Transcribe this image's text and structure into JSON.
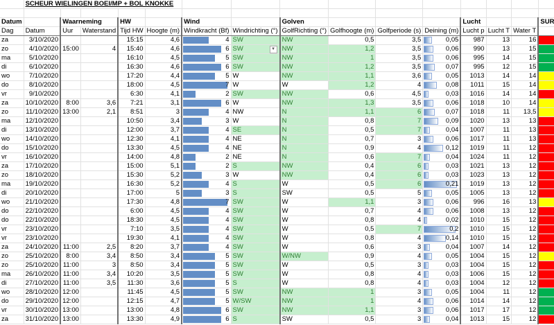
{
  "title": "SCHEUR WIELINGEN BOEI/MP + BOL KNOKKE",
  "groups": {
    "datum": "Datum",
    "waarneming": "Waarneming",
    "hw": "HW",
    "wind": "Wind",
    "golven": "Golven",
    "lucht": "Lucht",
    "surf": "SURF?"
  },
  "columns": [
    "Dag",
    "Datum",
    "Uur",
    "Waterstand",
    "Tijd HW",
    "Hoogte (m)",
    "Windkracht (Bf)",
    "Windrichting (°)",
    "GolfRichting (°)",
    "Golfhoogte (m)",
    "Golfperiode (s)",
    "Deining (m)",
    "Lucht p",
    "Lucht T",
    "Water T"
  ],
  "colors": {
    "highlight_bg": "#c6efce",
    "highlight_text": "#2e7d32",
    "bar": "#638ec6",
    "red": "#ff0000",
    "yellow": "#ffff00",
    "green": "#00b050"
  },
  "rows": [
    [
      "za",
      "3/10/2020",
      "",
      "",
      "15:15",
      "4,6",
      "4",
      "SW",
      "NW",
      "0,5",
      "3,5",
      "0,05",
      "987",
      "13",
      "16",
      "red"
    ],
    [
      "zo",
      "4/10/2020",
      "15:00",
      "4",
      "15:40",
      "4,6",
      "6",
      "SW",
      "NW",
      "1,2",
      "3,5",
      "0,06",
      "990",
      "13",
      "15",
      "green"
    ],
    [
      "ma",
      "5/10/2020",
      "",
      "",
      "16:10",
      "4,5",
      "5",
      "SW",
      "NW",
      "1",
      "3,5",
      "0,06",
      "995",
      "14",
      "15",
      "green"
    ],
    [
      "di",
      "6/10/2020",
      "",
      "",
      "16:30",
      "4,6",
      "6",
      "SW",
      "NW",
      "1,2",
      "3,5",
      "0,07",
      "995",
      "12",
      "15",
      "green"
    ],
    [
      "wo",
      "7/10/2020",
      "",
      "",
      "17:20",
      "4,4",
      "5",
      "W",
      "NW",
      "1,1",
      "3,6",
      "0,05",
      "1013",
      "14",
      "14",
      "yellow"
    ],
    [
      "do",
      "8/10/2020",
      "",
      "",
      "18:00",
      "4,5",
      "7",
      "W",
      "W",
      "1,2",
      "4",
      "0,08",
      "1011",
      "15",
      "14",
      "yellow"
    ],
    [
      "vr",
      "9/10/2020",
      "",
      "",
      "6:30",
      "4,1",
      "2",
      "SW",
      "NW",
      "0,6",
      "4,5",
      "0,03",
      "1016",
      "14",
      "14",
      "red"
    ],
    [
      "za",
      "10/10/2020",
      "8:00",
      "3,6",
      "7:21",
      "3,1",
      "6",
      "W",
      "NW",
      "1,3",
      "3,5",
      "0,06",
      "1018",
      "10",
      "14",
      "yellow"
    ],
    [
      "zo",
      "11/10/2020",
      "13:00",
      "2,1",
      "8:51",
      "3",
      "4",
      "NW",
      "N",
      "1,1",
      "6",
      "0,07",
      "1018",
      "11",
      "13,5",
      "yellow"
    ],
    [
      "ma",
      "12/10/2020",
      "",
      "",
      "10:50",
      "3,4",
      "3",
      "W",
      "N",
      "0,8",
      "7",
      "0,09",
      "1020",
      "13",
      "13",
      "red"
    ],
    [
      "di",
      "13/10/2020",
      "",
      "",
      "12:00",
      "3,7",
      "4",
      "SE",
      "N",
      "0,5",
      "7",
      "0,04",
      "1007",
      "11",
      "13",
      "red"
    ],
    [
      "wo",
      "14/10/2020",
      "",
      "",
      "12:30",
      "4,1",
      "4",
      "NE",
      "N",
      "0,7",
      "3",
      "0,06",
      "1017",
      "11",
      "13",
      "red"
    ],
    [
      "do",
      "15/10/2020",
      "",
      "",
      "13:30",
      "4,5",
      "4",
      "NE",
      "N",
      "0,9",
      "4",
      "0,12",
      "1019",
      "11",
      "12",
      "red"
    ],
    [
      "vr",
      "16/10/2020",
      "",
      "",
      "14:00",
      "4,8",
      "2",
      "NE",
      "N",
      "0,6",
      "7",
      "0,04",
      "1024",
      "11",
      "12",
      "red"
    ],
    [
      "za",
      "17/10/2020",
      "",
      "",
      "15:00",
      "5,1",
      "2",
      "S",
      "NW",
      "0,4",
      "6",
      "0,03",
      "1021",
      "13",
      "12",
      "red"
    ],
    [
      "zo",
      "18/10/2020",
      "",
      "",
      "15:30",
      "5,2",
      "3",
      "W",
      "NW",
      "0,4",
      "6",
      "0,03",
      "1023",
      "13",
      "12",
      "red"
    ],
    [
      "ma",
      "19/10/2020",
      "",
      "",
      "16:30",
      "5,2",
      "4",
      "S",
      "W",
      "0,5",
      "6",
      "0,21",
      "1019",
      "13",
      "12",
      "red"
    ],
    [
      "di",
      "20/10/2020",
      "",
      "",
      "17:00",
      "5",
      "3",
      "S",
      "SW",
      "0,5",
      "5",
      "0,05",
      "1005",
      "13",
      "12",
      "red"
    ],
    [
      "wo",
      "21/10/2020",
      "",
      "",
      "17:30",
      "4,8",
      "7",
      "SW",
      "W",
      "1,1",
      "3",
      "0,06",
      "996",
      "16",
      "13",
      "yellow"
    ],
    [
      "do",
      "22/10/2020",
      "",
      "",
      "6:00",
      "4,5",
      "4",
      "SW",
      "W",
      "0,7",
      "4",
      "0,06",
      "1008",
      "13",
      "12",
      "red"
    ],
    [
      "do",
      "22/10/2020",
      "",
      "",
      "18:30",
      "4,5",
      "4",
      "SW",
      "W",
      "0,8",
      "4",
      "0,02",
      "1010",
      "15",
      "12",
      "red"
    ],
    [
      "vr",
      "23/10/2020",
      "",
      "",
      "7:10",
      "3,5",
      "4",
      "SW",
      "W",
      "0,5",
      "7",
      "0,2",
      "1010",
      "15",
      "12",
      "red"
    ],
    [
      "vr",
      "23/10/2020",
      "",
      "",
      "19:30",
      "4,1",
      "4",
      "SW",
      "W",
      "0,8",
      "4",
      "0,14",
      "1010",
      "15",
      "12",
      "red"
    ],
    [
      "za",
      "24/10/2020",
      "11:00",
      "2,5",
      "8:20",
      "3,7",
      "4",
      "SW",
      "W",
      "0,6",
      "3",
      "0,04",
      "1007",
      "14",
      "12",
      "red"
    ],
    [
      "zo",
      "25/10/2020",
      "8:00",
      "3,4",
      "8:50",
      "3,4",
      "5",
      "SW",
      "W/NW",
      "0,9",
      "4",
      "0,05",
      "1004",
      "15",
      "12",
      "yellow"
    ],
    [
      "zo",
      "25/10/2020",
      "11:00",
      "3",
      "8:50",
      "3,4",
      "5",
      "SW",
      "W",
      "0,5",
      "3",
      "0,03",
      "1004",
      "15",
      "12",
      "red"
    ],
    [
      "ma",
      "26/10/2020",
      "11:00",
      "3,4",
      "10:20",
      "3,5",
      "5",
      "SW",
      "W",
      "0,8",
      "4",
      "0,03",
      "1006",
      "15",
      "12",
      "red"
    ],
    [
      "di",
      "27/10/2020",
      "11:00",
      "3,5",
      "11:30",
      "3,6",
      "5",
      "S",
      "W",
      "0,8",
      "4",
      "0,03",
      "1004",
      "12",
      "12",
      "red"
    ],
    [
      "wo",
      "28/10/2020",
      "12:00",
      "",
      "11:45",
      "4,5",
      "5",
      "SW",
      "NW",
      "1",
      "3",
      "0,05",
      "1004",
      "11",
      "12",
      "green"
    ],
    [
      "do",
      "29/10/2020",
      "12:00",
      "",
      "12:15",
      "4,7",
      "5",
      "W/SW",
      "NW",
      "1",
      "4",
      "0,06",
      "1014",
      "14",
      "12",
      "green"
    ],
    [
      "vr",
      "30/10/2020",
      "13:00",
      "",
      "13:00",
      "4,8",
      "6",
      "SW",
      "NW",
      "1,1",
      "3",
      "0,06",
      "1017",
      "17",
      "12",
      "green"
    ],
    [
      "za",
      "31/10/2020",
      "13:00",
      "",
      "13:30",
      "4,9",
      "6",
      "S",
      "SW",
      "0,5",
      "3",
      "0,04",
      "1013",
      "15",
      "12",
      "red"
    ]
  ]
}
